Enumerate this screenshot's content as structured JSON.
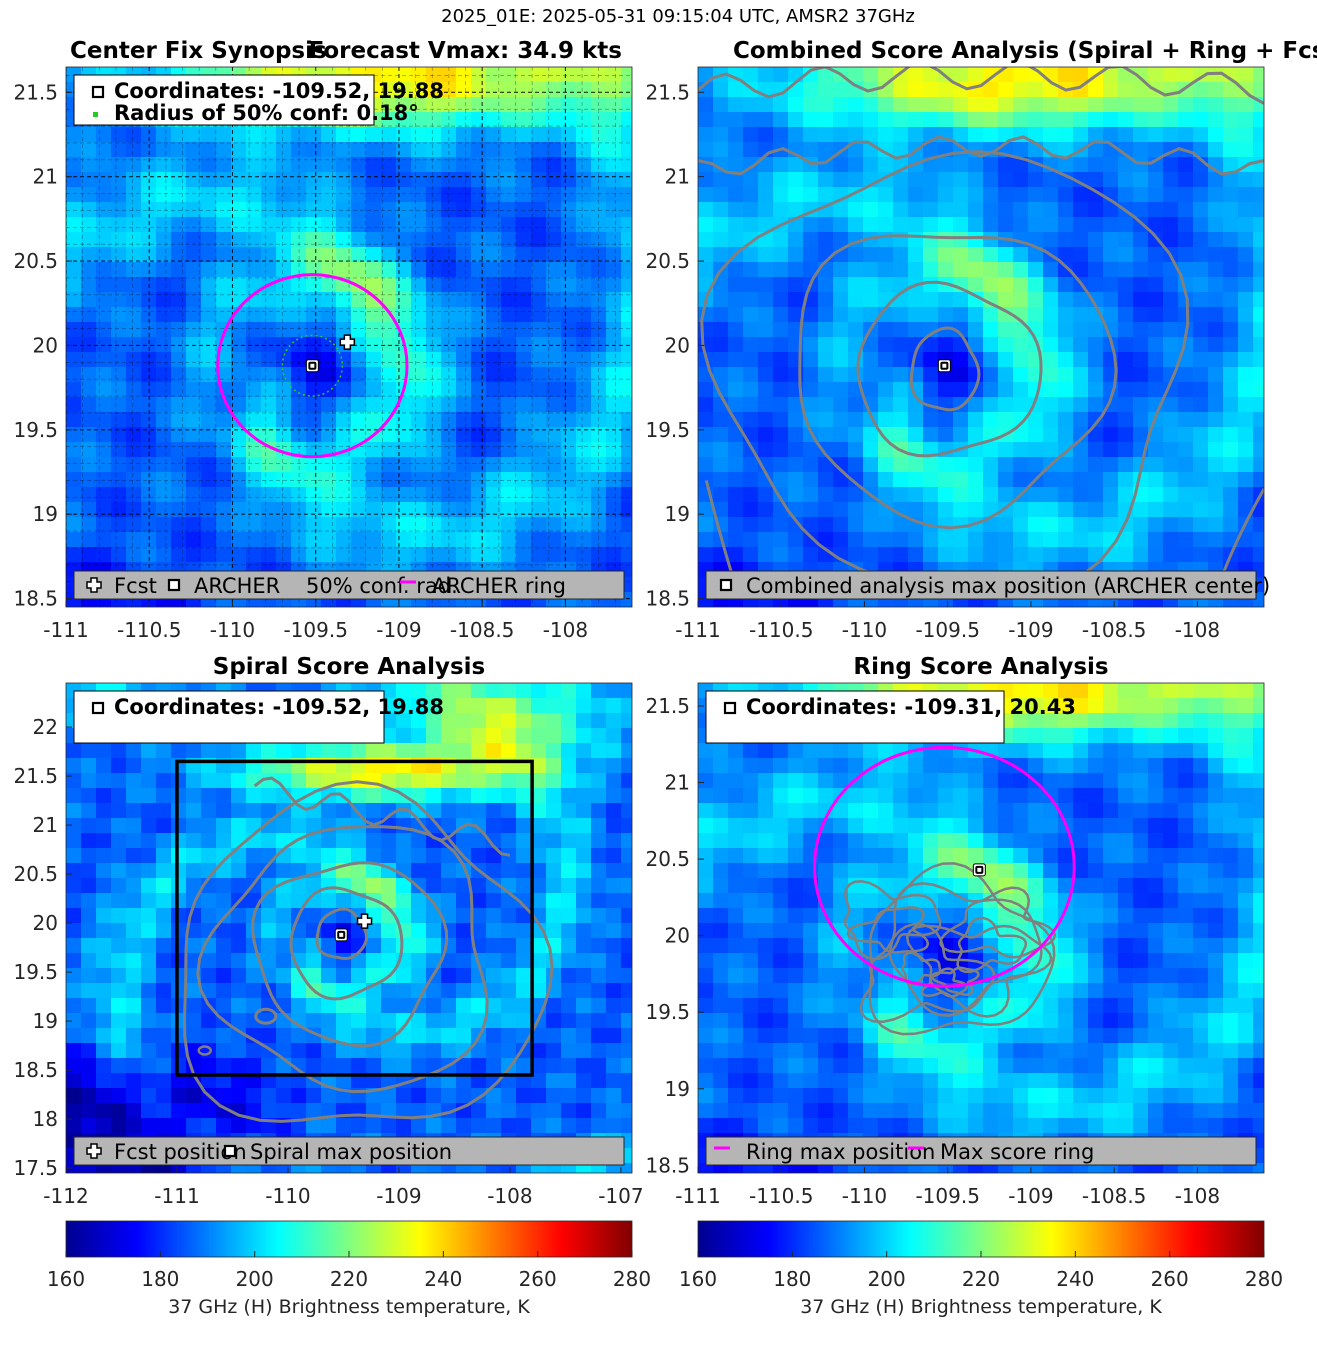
{
  "suptitle": "2025_01E: 2025-05-31 09:15:04 UTC, AMSR2 37GHz",
  "colors": {
    "ring": "#ff00ff",
    "contour": "#808080",
    "conf": "#22cc22",
    "legend_bg": "#b5b5b5"
  },
  "colormap": [
    "#00008f",
    "#0000ff",
    "#0080ff",
    "#00ffff",
    "#80ff80",
    "#ffff00",
    "#ff8000",
    "#ff0000",
    "#800000"
  ],
  "chart_data": [
    {
      "id": "p1",
      "type": "heatmap",
      "title_left": "Center Fix Synopsis",
      "title_right": "Forecast Vmax: 34.9 kts",
      "xlim": [
        -111,
        -107.6
      ],
      "ylim": [
        18.45,
        21.65
      ],
      "xticks": [
        -111,
        -110.5,
        -110,
        -109.5,
        -109,
        -108.5,
        -108
      ],
      "yticks": [
        18.5,
        19,
        19.5,
        20,
        20.5,
        21,
        21.5
      ],
      "xticklabels": [
        "-111",
        "-110.5",
        "-110",
        "-109.5",
        "-109",
        "-108.5",
        "-108"
      ],
      "yticklabels": [
        "18.5",
        "19",
        "19.5",
        "20",
        "20.5",
        "21",
        "21.5"
      ],
      "grid": true,
      "coord_lines": [
        "Coordinates: -109.52, 19.88",
        "Radius of 50% conf: 0.18°"
      ],
      "archer_center": [
        -109.52,
        19.88
      ],
      "fcst_position": [
        -109.31,
        20.02
      ],
      "conf_radius_deg": 0.18,
      "archer_ring_radius_deg": 0.58,
      "legend": [
        "Fcst",
        "ARCHER",
        "50% conf. rad.",
        "ARCHER ring"
      ]
    },
    {
      "id": "p2",
      "type": "heatmap",
      "title": "Combined Score Analysis (Spiral + Ring + Fcst_Pe",
      "xlim": [
        -111,
        -107.6
      ],
      "ylim": [
        18.45,
        21.65
      ],
      "xticks": [
        -111,
        -110.5,
        -110,
        -109.5,
        -109,
        -108.5,
        -108
      ],
      "yticks": [
        18.5,
        19,
        19.5,
        20,
        20.5,
        21,
        21.5
      ],
      "xticklabels": [
        "-111",
        "-110.5",
        "-110",
        "-109.5",
        "-109",
        "-108.5",
        "-108"
      ],
      "yticklabels": [
        "18.5",
        "19",
        "19.5",
        "20",
        "20.5",
        "21",
        "21.5"
      ],
      "max_position": [
        -109.52,
        19.88
      ],
      "legend": [
        "Combined analysis max position (ARCHER center)"
      ]
    },
    {
      "id": "p3",
      "type": "heatmap",
      "title": "Spiral Score Analysis",
      "xlim": [
        -112,
        -106.9
      ],
      "ylim": [
        17.45,
        22.45
      ],
      "xticks": [
        -112,
        -111,
        -110,
        -109,
        -108,
        -107
      ],
      "yticks": [
        17.5,
        18,
        18.5,
        19,
        19.5,
        20,
        20.5,
        21,
        21.5,
        22
      ],
      "xticklabels": [
        "-112",
        "-111",
        "-110",
        "-109",
        "-108",
        "-107"
      ],
      "yticklabels": [
        "17.5",
        "18",
        "18.5",
        "19",
        "19.5",
        "20",
        "20.5",
        "21",
        "21.5",
        "22"
      ],
      "coord_lines": [
        "Coordinates: -109.52, 19.88"
      ],
      "max_position": [
        -109.52,
        19.88
      ],
      "fcst_position": [
        -109.31,
        20.02
      ],
      "search_box": {
        "lon": [
          -111.0,
          -107.8
        ],
        "lat": [
          18.45,
          21.65
        ]
      },
      "legend": [
        "Fcst position",
        "Spiral max position"
      ]
    },
    {
      "id": "p4",
      "type": "heatmap",
      "title": "Ring Score Analysis",
      "xlim": [
        -111,
        -107.6
      ],
      "ylim": [
        18.45,
        21.65
      ],
      "xticks": [
        -111,
        -110.5,
        -110,
        -109.5,
        -109,
        -108.5,
        -108
      ],
      "yticks": [
        18.5,
        19,
        19.5,
        20,
        20.5,
        21,
        21.5
      ],
      "xticklabels": [
        "-111",
        "-110.5",
        "-110",
        "-109.5",
        "-109",
        "-108.5",
        "-108"
      ],
      "yticklabels": [
        "18.5",
        "19",
        "19.5",
        "20",
        "20.5",
        "21",
        "21.5"
      ],
      "coord_lines": [
        "Coordinates: -109.31, 20.43"
      ],
      "max_position": [
        -109.31,
        20.43
      ],
      "ring_radius_deg": 0.78,
      "legend": [
        "Ring max position",
        "Max score ring"
      ]
    }
  ],
  "colorbars": [
    {
      "range": [
        160,
        280
      ],
      "ticks": [
        160,
        180,
        200,
        220,
        240,
        260,
        280
      ],
      "ticklabels": [
        "160",
        "180",
        "200",
        "220",
        "240",
        "260",
        "280"
      ],
      "label": "37 GHz (H) Brightness temperature, K"
    },
    {
      "range": [
        160,
        280
      ],
      "ticks": [
        160,
        180,
        200,
        220,
        240,
        260,
        280
      ],
      "ticklabels": [
        "160",
        "180",
        "200",
        "220",
        "240",
        "260",
        "280"
      ],
      "label": "37 GHz (H) Brightness temperature, K"
    }
  ]
}
